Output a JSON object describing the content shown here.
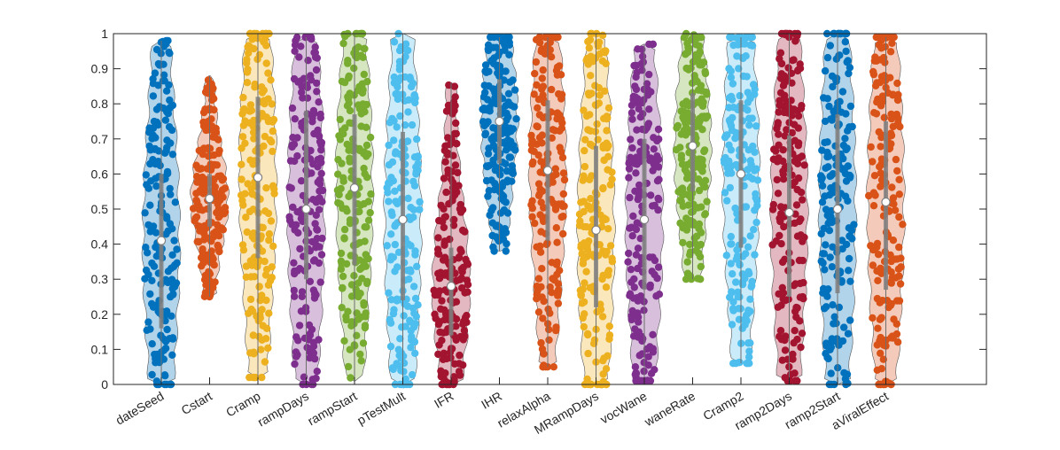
{
  "chart_data": {
    "type": "violin",
    "title": "",
    "xlabel": "",
    "ylabel": "",
    "ylim": [
      0,
      1
    ],
    "yticks": [
      "0",
      "0.1",
      "0.2",
      "0.3",
      "0.4",
      "0.5",
      "0.6",
      "0.7",
      "0.8",
      "0.9",
      "1"
    ],
    "grid": false,
    "categories": [
      "dateSeed",
      "Cstart",
      "Cramp",
      "rampDays",
      "rampStart",
      "pTestMult",
      "IFR",
      "IHR",
      "relaxAlpha",
      "MRampDays",
      "vocWane",
      "waneRate",
      "Cramp2",
      "ramp2Days",
      "ramp2Start",
      "aViralEffect"
    ],
    "series": [
      {
        "name": "dateSeed",
        "color": "#0072BD",
        "median": 0.41,
        "min": 0.0,
        "max": 0.98,
        "q1": 0.16,
        "q3": 0.6
      },
      {
        "name": "Cstart",
        "color": "#D95319",
        "median": 0.53,
        "min": 0.25,
        "max": 0.88,
        "q1": 0.45,
        "q3": 0.6
      },
      {
        "name": "Cramp",
        "color": "#EDB120",
        "median": 0.59,
        "min": 0.02,
        "max": 1.0,
        "q1": 0.36,
        "q3": 0.82
      },
      {
        "name": "rampDays",
        "color": "#7E2F8E",
        "median": 0.5,
        "min": 0.0,
        "max": 0.99,
        "q1": 0.3,
        "q3": 0.78
      },
      {
        "name": "rampStart",
        "color": "#77AC30",
        "median": 0.56,
        "min": 0.01,
        "max": 1.0,
        "q1": 0.34,
        "q3": 0.77
      },
      {
        "name": "pTestMult",
        "color": "#4DBEEE",
        "median": 0.47,
        "min": 0.0,
        "max": 1.0,
        "q1": 0.24,
        "q3": 0.72
      },
      {
        "name": "IFR",
        "color": "#A2142F",
        "median": 0.28,
        "min": 0.0,
        "max": 0.86,
        "q1": 0.14,
        "q3": 0.39
      },
      {
        "name": "IHR",
        "color": "#0072BD",
        "median": 0.75,
        "min": 0.38,
        "max": 0.99,
        "q1": 0.63,
        "q3": 0.87
      },
      {
        "name": "relaxAlpha",
        "color": "#D95319",
        "median": 0.61,
        "min": 0.05,
        "max": 0.99,
        "q1": 0.41,
        "q3": 0.81
      },
      {
        "name": "MRampDays",
        "color": "#EDB120",
        "median": 0.44,
        "min": 0.0,
        "max": 1.0,
        "q1": 0.22,
        "q3": 0.68
      },
      {
        "name": "vocWane",
        "color": "#7E2F8E",
        "median": 0.47,
        "min": 0.01,
        "max": 0.97,
        "q1": 0.27,
        "q3": 0.7
      },
      {
        "name": "waneRate",
        "color": "#77AC30",
        "median": 0.68,
        "min": 0.3,
        "max": 1.0,
        "q1": 0.55,
        "q3": 0.83
      },
      {
        "name": "Cramp2",
        "color": "#4DBEEE",
        "median": 0.6,
        "min": 0.06,
        "max": 0.99,
        "q1": 0.39,
        "q3": 0.81
      },
      {
        "name": "ramp2Days",
        "color": "#A2142F",
        "median": 0.49,
        "min": 0.01,
        "max": 1.0,
        "q1": 0.25,
        "q3": 0.71
      },
      {
        "name": "ramp2Start",
        "color": "#0072BD",
        "median": 0.5,
        "min": 0.0,
        "max": 1.0,
        "q1": 0.26,
        "q3": 0.77
      },
      {
        "name": "aViralEffect",
        "color": "#D95319",
        "median": 0.52,
        "min": 0.0,
        "max": 0.99,
        "q1": 0.27,
        "q3": 0.75
      }
    ]
  }
}
